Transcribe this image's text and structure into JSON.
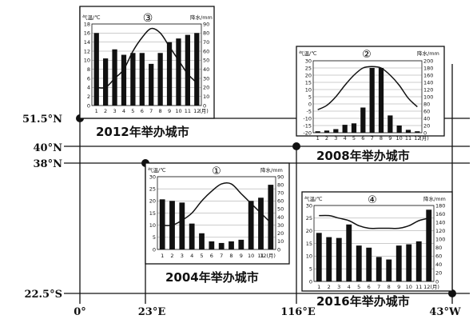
{
  "axes": {
    "lat_labels": [
      "51.5°N",
      "40°N",
      "38°N",
      "22.5°S"
    ],
    "lon_labels": [
      "0°",
      "23°E",
      "116°E",
      "43°W"
    ]
  },
  "charts": [
    {
      "marker": "③",
      "caption": "2012年举办城市",
      "temp_label": "气温/℃",
      "precip_label": "降水/mm",
      "month_unit": "(月)",
      "temp_ticks": [
        "18",
        "16",
        "14",
        "12",
        "10",
        "8",
        "6",
        "4",
        "2",
        "0"
      ],
      "precip_ticks": [
        "90",
        "80",
        "70",
        "60",
        "50",
        "40",
        "30",
        "20",
        "10",
        "0"
      ],
      "months": [
        "1",
        "2",
        "3",
        "4",
        "5",
        "6",
        "7",
        "8",
        "9",
        "10",
        "11",
        "12"
      ]
    },
    {
      "marker": "②",
      "caption": "2008年举办城市",
      "temp_label": "气温/℃",
      "precip_label": "降水/mm",
      "month_unit": "(月)",
      "temp_ticks": [
        "30",
        "25",
        "20",
        "15",
        "10",
        "5",
        "0",
        "-5",
        "-10",
        "-15",
        "-20"
      ],
      "precip_ticks": [
        "200",
        "180",
        "160",
        "140",
        "120",
        "100",
        "80",
        "60",
        "40",
        "20",
        "0"
      ],
      "months": [
        "1",
        "2",
        "3",
        "4",
        "5",
        "6",
        "7",
        "8",
        "9",
        "10",
        "11",
        "12"
      ]
    },
    {
      "marker": "①",
      "caption": "2004年举办城市",
      "temp_label": "气温/℃",
      "precip_label": "降水/mm",
      "month_unit": "12(月)",
      "temp_ticks": [
        "30",
        "25",
        "20",
        "15",
        "10",
        "5",
        "0"
      ],
      "precip_ticks": [
        "90",
        "80",
        "70",
        "60",
        "50",
        "40",
        "30",
        "20",
        "10",
        "0"
      ],
      "months": [
        "1",
        "2",
        "3",
        "4",
        "5",
        "6",
        "7",
        "8",
        "9",
        "10",
        "11"
      ]
    },
    {
      "marker": "④",
      "caption": "2016年举办城市",
      "temp_label": "气温/℃",
      "precip_label": "降水/mm",
      "month_unit": "12(月)",
      "temp_ticks": [
        "30",
        "25",
        "20",
        "15",
        "10",
        "5",
        "0"
      ],
      "precip_ticks": [
        "180",
        "160",
        "140",
        "120",
        "100",
        "80",
        "60",
        "40",
        "20",
        "0"
      ],
      "months": [
        "1",
        "2",
        "3",
        "4",
        "5",
        "6",
        "7",
        "8",
        "9",
        "10",
        "11"
      ]
    }
  ],
  "chart_data": [
    {
      "type": "bar",
      "name": "③",
      "categories": [
        "1",
        "2",
        "3",
        "4",
        "5",
        "6",
        "7",
        "8",
        "9",
        "10",
        "11",
        "12"
      ],
      "precip_mm": [
        80,
        52,
        62,
        56,
        58,
        58,
        46,
        58,
        70,
        74,
        78,
        80
      ],
      "temp_c": [
        4,
        4,
        6,
        8,
        12,
        15,
        17,
        16,
        13,
        10,
        7,
        5
      ],
      "temp_range": [
        0,
        18
      ],
      "precip_range": [
        0,
        90
      ]
    },
    {
      "type": "bar",
      "name": "②",
      "categories": [
        "1",
        "2",
        "3",
        "4",
        "5",
        "6",
        "7",
        "8",
        "9",
        "10",
        "11",
        "12"
      ],
      "precip_mm": [
        4,
        6,
        10,
        22,
        26,
        70,
        180,
        180,
        48,
        20,
        8,
        4
      ],
      "temp_c": [
        -4,
        -1,
        5,
        13,
        20,
        25,
        26,
        25,
        20,
        13,
        4,
        -2
      ],
      "temp_range": [
        -20,
        30
      ],
      "precip_range": [
        0,
        200
      ]
    },
    {
      "type": "bar",
      "name": "①",
      "categories": [
        "1",
        "2",
        "3",
        "4",
        "5",
        "6",
        "7",
        "8",
        "9",
        "10",
        "11",
        "12"
      ],
      "precip_mm": [
        62,
        60,
        58,
        32,
        20,
        10,
        8,
        10,
        12,
        60,
        64,
        80
      ],
      "temp_c": [
        10,
        10,
        12,
        15,
        20,
        24,
        27,
        27,
        23,
        19,
        15,
        11
      ],
      "temp_range": [
        0,
        30
      ],
      "precip_range": [
        0,
        90
      ]
    },
    {
      "type": "bar",
      "name": "④",
      "categories": [
        "1",
        "2",
        "3",
        "4",
        "5",
        "6",
        "7",
        "8",
        "9",
        "10",
        "11",
        "12"
      ],
      "precip_mm": [
        115,
        105,
        103,
        135,
        85,
        80,
        58,
        52,
        85,
        88,
        95,
        170
      ],
      "temp_c": [
        26,
        26,
        25,
        24,
        22,
        21,
        21,
        21,
        21,
        22,
        24,
        25
      ],
      "temp_range": [
        0,
        30
      ],
      "precip_range": [
        0,
        180
      ]
    }
  ]
}
